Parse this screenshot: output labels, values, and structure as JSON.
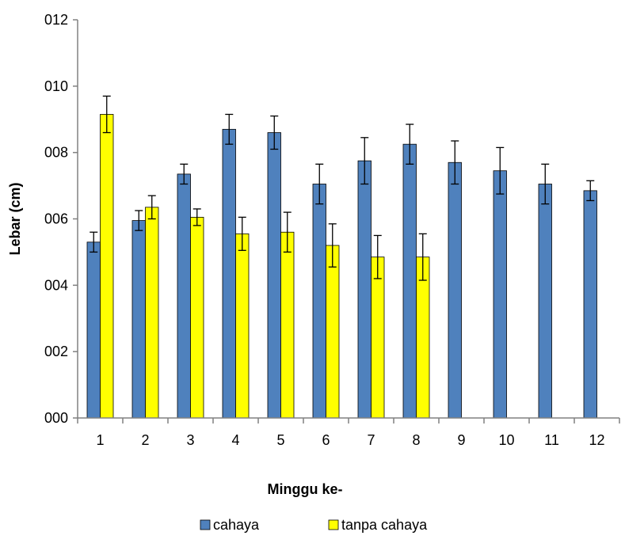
{
  "chart_data": {
    "type": "bar",
    "title": "",
    "xlabel": "Minggu ke-",
    "ylabel": "Lebar (cm)",
    "ylim": [
      0,
      12
    ],
    "y_ticks": [
      "000",
      "002",
      "004",
      "006",
      "008",
      "010",
      "012"
    ],
    "y_tick_values": [
      0,
      2,
      4,
      6,
      8,
      10,
      12
    ],
    "categories": [
      "1",
      "2",
      "3",
      "4",
      "5",
      "6",
      "7",
      "8",
      "9",
      "10",
      "11",
      "12"
    ],
    "grid": false,
    "legend_position": "bottom",
    "series": [
      {
        "name": "cahaya",
        "color": "#4F81BD",
        "values": [
          5.3,
          5.95,
          7.35,
          8.7,
          8.6,
          7.05,
          7.75,
          8.25,
          7.7,
          7.45,
          7.05,
          6.85
        ],
        "errors": [
          0.3,
          0.3,
          0.3,
          0.45,
          0.5,
          0.6,
          0.7,
          0.6,
          0.65,
          0.7,
          0.6,
          0.3
        ]
      },
      {
        "name": "tanpa cahaya",
        "color": "#FFFF00",
        "values": [
          9.15,
          6.35,
          6.05,
          5.55,
          5.6,
          5.2,
          4.85,
          4.85,
          null,
          null,
          null,
          null
        ],
        "errors": [
          0.55,
          0.35,
          0.25,
          0.5,
          0.6,
          0.65,
          0.65,
          0.7,
          null,
          null,
          null,
          null
        ]
      }
    ]
  }
}
